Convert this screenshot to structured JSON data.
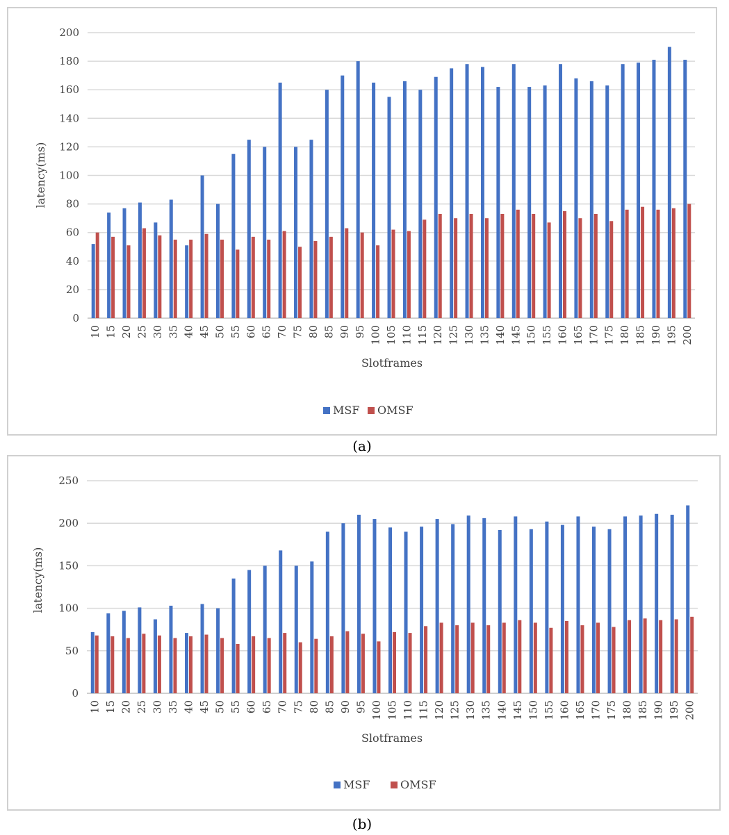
{
  "chart_data": [
    {
      "type": "bar",
      "panel_caption": "(a)",
      "xlabel": "Slotframes",
      "ylabel": "latency(ms)",
      "ylim": [
        0,
        200
      ],
      "yticks": [
        0,
        20,
        40,
        60,
        80,
        100,
        120,
        140,
        160,
        180,
        200
      ],
      "grid": true,
      "legend_position": "bottom",
      "categories": [
        "10",
        "15",
        "20",
        "25",
        "30",
        "35",
        "40",
        "45",
        "50",
        "55",
        "60",
        "65",
        "70",
        "75",
        "80",
        "85",
        "90",
        "95",
        "100",
        "105",
        "110",
        "115",
        "120",
        "125",
        "130",
        "135",
        "140",
        "145",
        "150",
        "155",
        "160",
        "165",
        "170",
        "175",
        "180",
        "185",
        "190",
        "195",
        "200"
      ],
      "series": [
        {
          "name": "MSF",
          "color": "#4472C4",
          "values": [
            52,
            74,
            77,
            81,
            67,
            83,
            51,
            100,
            80,
            115,
            125,
            120,
            165,
            120,
            125,
            160,
            170,
            180,
            165,
            155,
            166,
            160,
            169,
            175,
            178,
            176,
            162,
            178,
            162,
            163,
            178,
            168,
            166,
            163,
            178,
            179,
            181,
            190,
            181
          ]
        },
        {
          "name": "OMSF",
          "color": "#C0504D",
          "values": [
            60,
            57,
            51,
            63,
            58,
            55,
            55,
            59,
            55,
            48,
            57,
            55,
            61,
            50,
            54,
            57,
            63,
            60,
            51,
            62,
            61,
            69,
            73,
            70,
            73,
            70,
            73,
            76,
            73,
            67,
            75,
            70,
            73,
            68,
            76,
            78,
            76,
            77,
            80
          ]
        }
      ]
    },
    {
      "type": "bar",
      "panel_caption": "(b)",
      "xlabel": "Slotframes",
      "ylabel": "latency(ms)",
      "ylim": [
        0,
        250
      ],
      "yticks": [
        0,
        50,
        100,
        150,
        200,
        250
      ],
      "grid": true,
      "legend_position": "bottom",
      "categories": [
        "10",
        "15",
        "20",
        "25",
        "30",
        "35",
        "40",
        "45",
        "50",
        "55",
        "60",
        "65",
        "70",
        "75",
        "80",
        "85",
        "90",
        "95",
        "100",
        "105",
        "110",
        "115",
        "120",
        "125",
        "130",
        "135",
        "140",
        "145",
        "150",
        "155",
        "160",
        "165",
        "170",
        "175",
        "180",
        "185",
        "190",
        "195",
        "200"
      ],
      "series": [
        {
          "name": "MSF",
          "color": "#4472C4",
          "values": [
            72,
            94,
            97,
            101,
            87,
            103,
            71,
            105,
            100,
            135,
            145,
            150,
            168,
            150,
            155,
            190,
            200,
            210,
            205,
            195,
            190,
            196,
            205,
            199,
            209,
            206,
            192,
            208,
            193,
            202,
            198,
            208,
            196,
            193,
            208,
            209,
            211,
            210,
            221
          ]
        },
        {
          "name": "OMSF",
          "color": "#C0504D",
          "values": [
            68,
            67,
            65,
            70,
            68,
            65,
            67,
            69,
            65,
            58,
            67,
            65,
            71,
            60,
            64,
            67,
            73,
            70,
            61,
            72,
            71,
            79,
            83,
            80,
            83,
            80,
            83,
            86,
            83,
            77,
            85,
            80,
            83,
            78,
            86,
            88,
            86,
            87,
            90
          ]
        }
      ]
    }
  ]
}
